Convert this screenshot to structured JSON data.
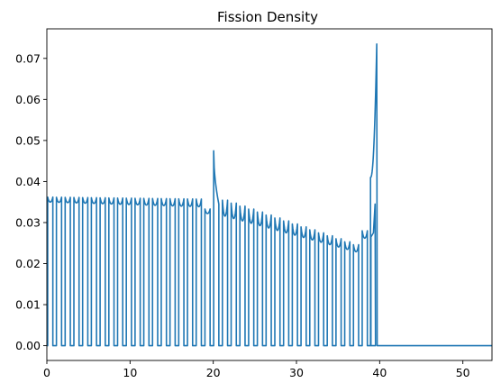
{
  "chart_data": {
    "type": "line",
    "title": "Fission Density",
    "xlabel": "",
    "ylabel": "",
    "xlim": [
      0,
      53.5
    ],
    "ylim": [
      -0.0036,
      0.0772
    ],
    "x_ticks": [
      0,
      10,
      20,
      30,
      40,
      50
    ],
    "x_tick_labels": [
      "0",
      "10",
      "20",
      "30",
      "40",
      "50"
    ],
    "y_ticks": [
      0.0,
      0.01,
      0.02,
      0.03,
      0.04,
      0.05,
      0.06,
      0.07
    ],
    "y_tick_labels": [
      "0.00",
      "0.01",
      "0.02",
      "0.03",
      "0.04",
      "0.05",
      "0.06",
      "0.07"
    ],
    "grid": false,
    "line_color": "#1f77b4",
    "series": [
      {
        "description_of_shape": "fuel pins with near-zero gaps",
        "pins": {
          "start": 0.1,
          "pitch": 1.05,
          "width": 0.62,
          "count": 37,
          "edge_values_start": [
            0.0362,
            0.035
          ],
          "edge_values_left_end": [
            0.0357,
            0.0338
          ],
          "edge_values_after_20": [
            0.0475,
            0.034
          ]
        },
        "x": [
          0.0,
          0.1,
          0.15,
          0.4,
          0.72,
          1.0,
          1.3,
          1.6,
          2.0,
          3.0,
          5.0,
          8.0,
          10.0,
          12.0,
          15.0,
          17.5,
          18.0,
          18.5,
          19.0,
          20.0,
          20.3,
          20.4,
          21.0,
          22.0,
          25.0,
          28.0,
          30.0,
          32.0,
          34.0,
          35.0,
          36.0,
          37.0,
          37.5,
          38.0,
          38.3,
          38.6,
          38.9,
          39.2,
          39.4,
          39.6,
          39.65,
          39.7,
          40.0,
          45.0,
          50.0,
          53.5
        ],
        "y": [
          0.0,
          0.0362,
          0.035,
          0.035,
          0.0362,
          0.0362,
          0.035,
          0.035,
          0.0362,
          0.0362,
          0.0361,
          0.036,
          0.0358,
          0.0356,
          0.0352,
          0.035,
          0.0357,
          0.0345,
          0.033,
          0.0,
          0.0,
          0.0475,
          0.038,
          0.033,
          0.0305,
          0.0285,
          0.0275,
          0.0262,
          0.0245,
          0.024,
          0.0238,
          0.024,
          0.0265,
          0.028,
          0.0345,
          0.038,
          0.041,
          0.048,
          0.056,
          0.065,
          0.0735,
          0.0,
          0.0,
          0.0,
          0.0,
          0.0
        ]
      }
    ]
  }
}
